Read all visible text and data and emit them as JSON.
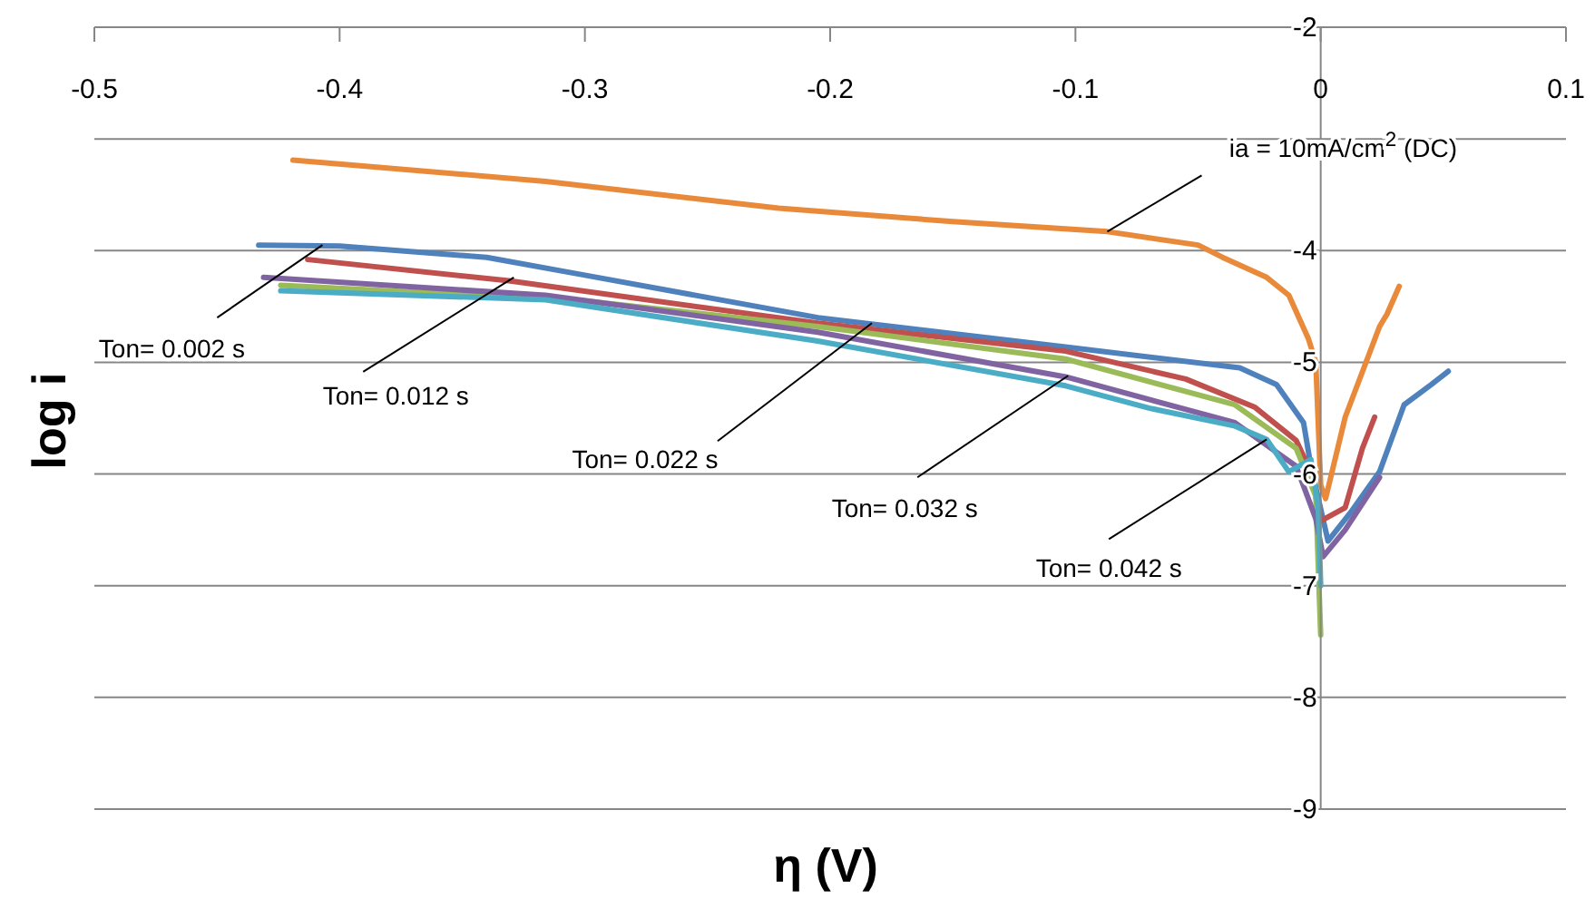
{
  "chart_data": {
    "type": "line",
    "xlabel": "η (V)",
    "ylabel": "log i",
    "xlim": [
      -0.5,
      0.1
    ],
    "xticks": [
      -0.5,
      -0.4,
      -0.3,
      -0.2,
      -0.1,
      0,
      0.1
    ],
    "ylim": [
      -9,
      -2
    ],
    "yticks": [
      -9,
      -8,
      -7,
      -6,
      -5,
      -4,
      {
        "value": -3,
        "label": null
      },
      -2
    ],
    "grid": "y",
    "series": [
      {
        "color": "#e9893a",
        "x": [
          -0.419,
          -0.316,
          -0.221,
          -0.15,
          -0.087,
          -0.05,
          -0.04,
          -0.022,
          -0.013,
          -0.005,
          -0.002,
          0,
          0.002,
          0.01,
          0.024,
          0.027,
          0.032
        ],
        "values": [
          -3.19,
          -3.38,
          -3.62,
          -3.74,
          -3.83,
          -3.95,
          -4.06,
          -4.24,
          -4.4,
          -4.79,
          -5.0,
          -6.1,
          -6.22,
          -5.49,
          -4.68,
          -4.57,
          -4.32
        ]
      },
      {
        "color": "#4f81bd",
        "x": [
          -0.433,
          -0.4,
          -0.34,
          -0.3,
          -0.205,
          -0.101,
          -0.033,
          -0.018,
          -0.007,
          -0.004,
          0.003,
          0.012,
          0.024,
          0.034,
          0.045,
          0.052
        ],
        "values": [
          -3.95,
          -3.96,
          -4.06,
          -4.22,
          -4.6,
          -4.87,
          -5.05,
          -5.2,
          -5.54,
          -5.93,
          -6.6,
          -6.35,
          -5.98,
          -5.38,
          -5.2,
          -5.08
        ]
      },
      {
        "color": "#c0504d",
        "x": [
          -0.413,
          -0.331,
          -0.205,
          -0.104,
          -0.055,
          -0.027,
          -0.01,
          -0.004,
          0,
          0.01,
          0.017,
          0.022
        ],
        "values": [
          -4.08,
          -4.27,
          -4.65,
          -4.9,
          -5.15,
          -5.4,
          -5.7,
          -5.98,
          -6.42,
          -6.3,
          -5.77,
          -5.49
        ]
      },
      {
        "color": "#9bbb59",
        "x": [
          -0.424,
          -0.3,
          -0.205,
          -0.104,
          -0.035,
          -0.01,
          -0.002,
          0
        ],
        "values": [
          -4.31,
          -4.45,
          -4.68,
          -4.97,
          -5.38,
          -5.77,
          -6.2,
          -7.44
        ]
      },
      {
        "color": "#8064a2",
        "x": [
          -0.431,
          -0.316,
          -0.205,
          -0.104,
          -0.035,
          -0.01,
          -0.002,
          0.001,
          0.01,
          0.024
        ],
        "values": [
          -4.24,
          -4.4,
          -4.73,
          -5.13,
          -5.54,
          -5.93,
          -6.4,
          -6.74,
          -6.5,
          -6.03
        ]
      },
      {
        "color": "#4bacc6",
        "x": [
          -0.424,
          -0.316,
          -0.205,
          -0.104,
          -0.07,
          -0.035,
          -0.022,
          -0.013,
          -0.004,
          -0.001,
          0
        ],
        "values": [
          -4.36,
          -4.44,
          -4.81,
          -5.21,
          -5.41,
          -5.57,
          -5.69,
          -5.98,
          -5.87,
          -6.3,
          -7.0
        ]
      }
    ],
    "annotations": [
      {
        "text": "ia = 10mA/cm$^{2}$ (DC)",
        "x": -0.087,
        "y": -3.83
      },
      {
        "text": "Ton= 0.002 s",
        "x": -0.407,
        "y": -3.95
      },
      {
        "text": "Ton= 0.012 s",
        "x": -0.329,
        "y": -4.24
      },
      {
        "text": "Ton= 0.022 s",
        "x": -0.183,
        "y": -4.65
      },
      {
        "text": "Ton= 0.032 s",
        "x": -0.103,
        "y": -5.12
      },
      {
        "text": "Ton= 0.042 s",
        "x": -0.022,
        "y": -5.69
      }
    ]
  }
}
